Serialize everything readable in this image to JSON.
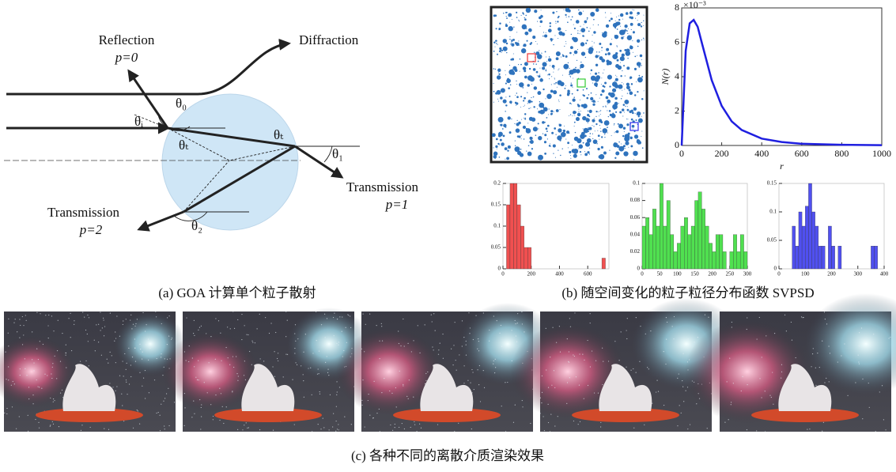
{
  "panel_a": {
    "caption": "(a) GOA 计算单个粒子散射",
    "labels": {
      "reflection": "Reflection",
      "p0": "p=0",
      "diffraction": "Diffraction",
      "transmission_1": "Transmission",
      "p1": "p=1",
      "transmission_2": "Transmission",
      "p2": "p=2",
      "theta_0": "θ₀",
      "theta_i": "θᵢ",
      "theta_t_1": "θₜ",
      "theta_t_2": "θₜ",
      "theta_1": "θ₁",
      "theta_2": "θ₂"
    }
  },
  "panel_b": {
    "caption": "(b) 随空间变化的粒子粒径分布函数 SVPSD"
  },
  "panel_c": {
    "caption": "(c) 各种不同的离散介质渲染效果"
  },
  "chart_data": [
    {
      "type": "line",
      "x_label": "r",
      "y_label": "N(r)",
      "y_multiplier": "×10⁻³",
      "color": "#1f1fe0",
      "x": [
        0,
        20,
        40,
        60,
        80,
        100,
        150,
        200,
        250,
        300,
        400,
        500,
        600,
        800,
        1000
      ],
      "values": [
        0,
        5.5,
        7.1,
        7.3,
        6.9,
        6.0,
        3.8,
        2.3,
        1.4,
        0.9,
        0.4,
        0.2,
        0.1,
        0.04,
        0.02
      ],
      "xlim": [
        0,
        1000
      ],
      "xticks": [
        0,
        200,
        400,
        600,
        800,
        1000
      ],
      "ylim": [
        0,
        8
      ],
      "yticks": [
        0,
        2,
        4,
        6,
        8
      ]
    },
    {
      "type": "histogram",
      "color": "#f05050",
      "bins": [
        0,
        25,
        50,
        75,
        100,
        125,
        150,
        175,
        200,
        225,
        250,
        275,
        300,
        325,
        350,
        375,
        400,
        425,
        450,
        475,
        500,
        525,
        550,
        575,
        600,
        625,
        650,
        675,
        700,
        725,
        750
      ],
      "values": [
        0,
        0.15,
        0.2,
        0.2,
        0.15,
        0.1,
        0.05,
        0.05,
        0,
        0,
        0,
        0,
        0,
        0,
        0,
        0,
        0,
        0,
        0,
        0,
        0,
        0,
        0,
        0,
        0,
        0,
        0,
        0,
        0.025,
        0
      ],
      "xlim": [
        0,
        750
      ],
      "xticks": [
        0,
        200,
        400,
        600
      ],
      "ylim": [
        0,
        0.2
      ],
      "yticks": [
        0,
        0.05,
        0.1,
        0.15,
        0.2
      ]
    },
    {
      "type": "histogram",
      "color": "#50e050",
      "bins": [
        0,
        10,
        20,
        30,
        40,
        50,
        60,
        70,
        80,
        90,
        100,
        110,
        120,
        130,
        140,
        150,
        160,
        170,
        180,
        190,
        200,
        210,
        220,
        230,
        240,
        250,
        260,
        270,
        280,
        290,
        300
      ],
      "values": [
        0.05,
        0.06,
        0.04,
        0.07,
        0.05,
        0.1,
        0.05,
        0.08,
        0.04,
        0.02,
        0.03,
        0.05,
        0.06,
        0.04,
        0.05,
        0.08,
        0.09,
        0.07,
        0.05,
        0.03,
        0.02,
        0.04,
        0.04,
        0.02,
        0,
        0.02,
        0.04,
        0.02,
        0.04,
        0.02
      ],
      "xlim": [
        0,
        300
      ],
      "xticks": [
        0,
        50,
        100,
        150,
        200,
        250,
        300
      ],
      "ylim": [
        0,
        0.1
      ],
      "yticks": [
        0,
        0.02,
        0.04,
        0.06,
        0.08,
        0.1
      ]
    },
    {
      "type": "histogram",
      "color": "#5050f0",
      "bins": [
        0,
        12.5,
        25,
        37.5,
        50,
        62.5,
        75,
        87.5,
        100,
        112.5,
        125,
        137.5,
        150,
        162.5,
        175,
        187.5,
        200,
        212.5,
        225,
        237.5,
        250,
        262.5,
        275,
        287.5,
        300,
        312.5,
        325,
        337.5,
        350,
        362.5,
        375,
        387.5,
        400
      ],
      "values": [
        0,
        0,
        0,
        0,
        0.075,
        0.04,
        0.1,
        0.075,
        0.11,
        0.15,
        0.1,
        0.075,
        0.04,
        0.04,
        0,
        0.075,
        0.04,
        0,
        0.04,
        0,
        0,
        0,
        0,
        0,
        0,
        0,
        0,
        0,
        0.04,
        0.04,
        0,
        0
      ],
      "xlim": [
        0,
        400
      ],
      "xticks": [
        0,
        100,
        200,
        300,
        400
      ],
      "ylim": [
        0,
        0.15
      ],
      "yticks": [
        0,
        0.05,
        0.1,
        0.15
      ]
    }
  ]
}
